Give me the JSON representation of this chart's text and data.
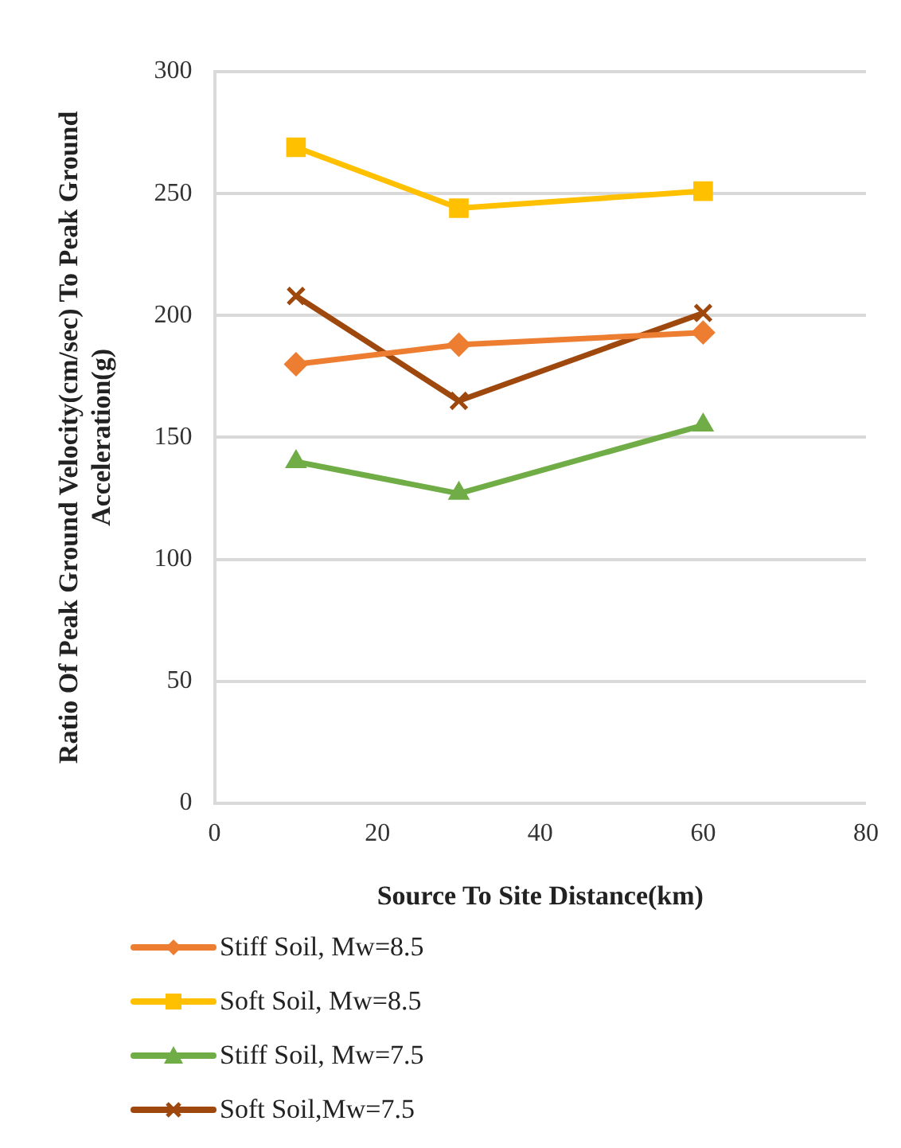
{
  "chart_data": {
    "type": "line",
    "xlabel": "Source To Site Distance(km)",
    "ylabel": "Ratio Of Peak Ground Velocity(cm/sec) To Peak Ground Acceleration(g)",
    "x": [
      10,
      30,
      60
    ],
    "series": [
      {
        "name": "Stiff Soil, Mw=8.5",
        "color": "#ed7d31",
        "marker": "diamond",
        "values": [
          180,
          188,
          193
        ]
      },
      {
        "name": "Soft Soil, Mw=8.5",
        "color": "#ffc000",
        "marker": "square",
        "values": [
          269,
          244,
          251
        ]
      },
      {
        "name": "Stiff Soil, Mw=7.5",
        "color": "#70ad47",
        "marker": "triangle",
        "values": [
          140,
          127,
          155
        ]
      },
      {
        "name": "Soft Soil,Mw=7.5",
        "color": "#9e480e",
        "marker": "cross",
        "values": [
          208,
          165,
          201
        ]
      }
    ],
    "xlim": [
      0,
      80
    ],
    "xticks": [
      0,
      20,
      40,
      60,
      80
    ],
    "ylim": [
      0,
      300
    ],
    "yticks": [
      0,
      50,
      100,
      150,
      200,
      250,
      300
    ],
    "grid": "y",
    "legend": "bottom",
    "line_style": "solid"
  }
}
